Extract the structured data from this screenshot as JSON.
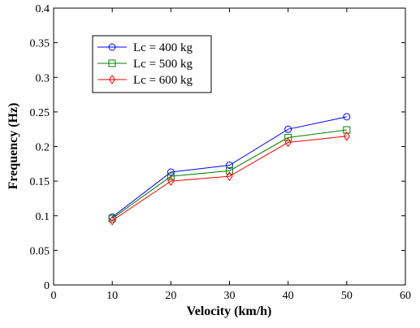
{
  "chart_data": {
    "type": "line",
    "title": "",
    "xlabel": "Velocity (km/h)",
    "ylabel": "Frequency (Hz)",
    "xlim": [
      0,
      60
    ],
    "ylim": [
      0,
      0.4
    ],
    "xticks": [
      "0",
      "10",
      "20",
      "30",
      "40",
      "50",
      "60"
    ],
    "yticks": [
      "0",
      "0.05",
      "0.1",
      "0.15",
      "0.2",
      "0.25",
      "0.3",
      "0.35",
      "0.4"
    ],
    "grid": false,
    "legend_position": "top-left",
    "x": [
      10,
      20,
      30,
      40,
      50
    ],
    "series": [
      {
        "name": "Lc = 400 kg",
        "values": [
          0.098,
          0.163,
          0.173,
          0.225,
          0.243
        ],
        "color": "#0000ff",
        "marker": "circle"
      },
      {
        "name": "Lc = 500 kg",
        "values": [
          0.096,
          0.157,
          0.165,
          0.213,
          0.224
        ],
        "color": "#008000",
        "marker": "square"
      },
      {
        "name": "Lc = 600 kg",
        "values": [
          0.093,
          0.15,
          0.157,
          0.206,
          0.215
        ],
        "color": "#ff0000",
        "marker": "diamond"
      }
    ]
  }
}
